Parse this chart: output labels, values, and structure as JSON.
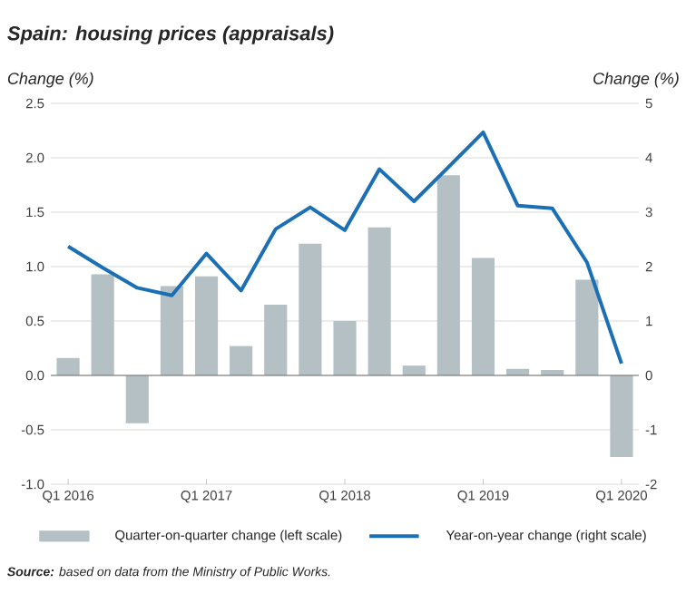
{
  "chart_data": {
    "type": "bar",
    "title": "Spain: housing prices (appraisals)",
    "ylabel": "Change (%)",
    "y2label": "Change (%)",
    "categories": [
      "Q1 2016",
      null,
      null,
      null,
      "Q1 2017",
      null,
      null,
      null,
      "Q1 2018",
      null,
      null,
      null,
      "Q1 2019",
      null,
      null,
      null,
      "Q1 2020"
    ],
    "series": [
      {
        "name": "Quarter-on-quarter change (left scale)",
        "color": "#b4c0c4",
        "values": [
          0.16,
          0.93,
          -0.44,
          0.82,
          0.91,
          0.27,
          0.65,
          1.21,
          0.5,
          1.36,
          0.09,
          1.84,
          1.08,
          0.06,
          0.05,
          0.88,
          -0.75
        ]
      },
      {
        "name": "Year-on-year change (right scale)",
        "type": "line",
        "axis": "y2",
        "color": "#1a6fb5",
        "values": [
          2.37,
          1.98,
          1.61,
          1.47,
          2.24,
          1.56,
          2.69,
          3.09,
          2.67,
          3.79,
          3.2,
          3.83,
          4.47,
          3.12,
          3.07,
          2.08,
          0.22
        ]
      }
    ],
    "ylim": [
      -1.0,
      2.5
    ],
    "yticks": [
      {
        "value": -1.0,
        "label": "-1.0"
      },
      -0.5,
      {
        "value": 0,
        "label": "0.0"
      },
      0.5,
      {
        "value": 1.0,
        "label": "1.0"
      },
      1.5,
      {
        "value": 2.0,
        "label": "2.0"
      },
      2.5
    ],
    "y2lim": [
      -2,
      5
    ],
    "y2ticks": [
      -2,
      -1,
      0,
      1,
      2,
      3,
      4,
      5
    ],
    "grid": "y",
    "legend": "bottom",
    "annotations": [
      "**Source:** based on data from the Ministry of Public Works."
    ]
  }
}
